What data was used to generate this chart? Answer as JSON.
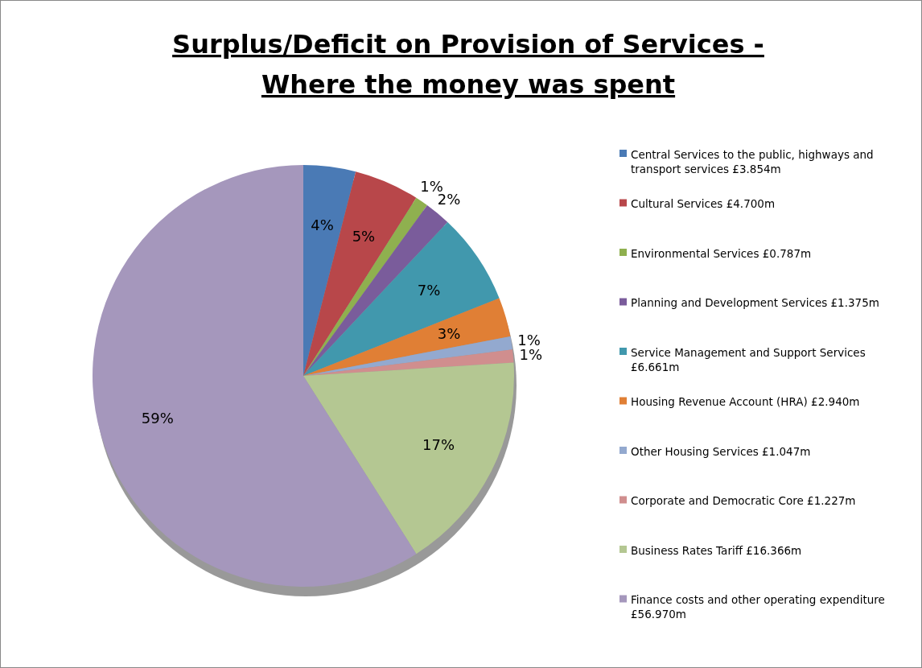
{
  "chart_data": {
    "type": "pie",
    "title": "Surplus/Deficit on Provision of Services - Where the money was spent",
    "categories": [
      "Central Services to the public, highways and transport services £3.854m",
      "Cultural Services £4.700m",
      "Environmental Services £0.787m",
      "Planning and Development Services £1.375m",
      "Service Management and Support Services £6.661m",
      "Housing Revenue Account (HRA) £2.940m",
      "Other Housing Services £1.047m",
      "Corporate and Democratic Core £1.227m",
      "Business Rates Tariff £16.366m",
      "Finance costs and other operating expenditure £56.970m"
    ],
    "values": [
      4,
      5,
      1,
      2,
      7,
      3,
      1,
      1,
      17,
      59
    ],
    "value_labels": [
      "4%",
      "5%",
      "1%",
      "2%",
      "7%",
      "3%",
      "1%",
      "1%",
      "17%",
      "59%"
    ],
    "colors": [
      "#4a7ab5",
      "#b8474a",
      "#8fb04f",
      "#7a5c9b",
      "#4198ad",
      "#e07f35",
      "#93a9cf",
      "#d08e8e",
      "#b4c792",
      "#a597bc"
    ],
    "legend": "right"
  }
}
